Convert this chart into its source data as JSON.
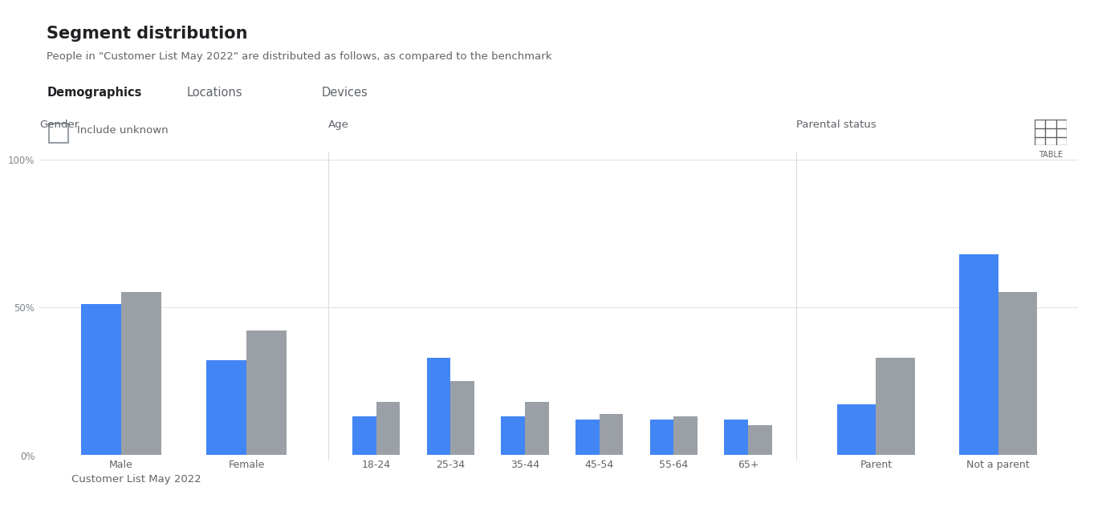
{
  "title": "Segment distribution",
  "subtitle": "People in \"Customer List May 2022\" are distributed as follows, as compared to the benchmark",
  "tabs": [
    "Demographics",
    "Locations",
    "Devices"
  ],
  "include_unknown_label": "Include unknown",
  "legend_label": "Customer List May 2022",
  "table_label": "TABLE",
  "gender": {
    "title": "Gender",
    "categories": [
      "Male",
      "Female"
    ],
    "blue": [
      51,
      32
    ],
    "gray": [
      55,
      42
    ]
  },
  "age": {
    "title": "Age",
    "categories": [
      "18-24",
      "25-34",
      "35-44",
      "45-54",
      "55-64",
      "65+"
    ],
    "blue": [
      13,
      33,
      13,
      12,
      12,
      12
    ],
    "gray": [
      18,
      25,
      18,
      14,
      13,
      10
    ]
  },
  "parental": {
    "title": "Parental status",
    "categories": [
      "Parent",
      "Not a parent"
    ],
    "blue": [
      17,
      68
    ],
    "gray": [
      33,
      55
    ]
  },
  "blue_color": "#4285f4",
  "gray_color": "#9aa0a6",
  "tab_active_color": "#1a73e8",
  "bg_color": "#ffffff",
  "text_dark": "#202124",
  "text_gray": "#5f6368",
  "text_light": "#80868b",
  "grid_color": "#e0e0e0",
  "border_color": "#dadce0",
  "ylim": [
    0,
    100
  ],
  "yticks": [
    0,
    50,
    100
  ],
  "ytick_labels": [
    "0%",
    "50%",
    "100%"
  ]
}
